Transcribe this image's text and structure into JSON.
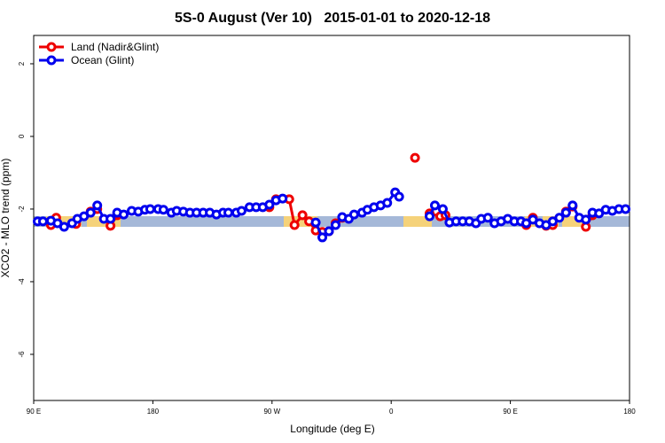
{
  "chart_data": {
    "type": "line",
    "title": "5S-0 August (Ver 10)   2015-01-01 to 2020-12-18",
    "x_label": "Longitude (deg E)",
    "y_label": "XCO2 - MLO trend (ppm)",
    "xlim": [
      90,
      540
    ],
    "xticks": [
      {
        "value": 90,
        "label": "90 E"
      },
      {
        "value": 180,
        "label": "180"
      },
      {
        "value": 270,
        "label": "90 W"
      },
      {
        "value": 360,
        "label": "0"
      },
      {
        "value": 450,
        "label": "90 E"
      },
      {
        "value": 540,
        "label": "180"
      }
    ],
    "ylim": [
      -7.27,
      2.78
    ],
    "yticks": [
      2,
      0,
      -2,
      -4,
      -6
    ],
    "legend": "top-left",
    "series": [
      {
        "name": "Land (Nadir&Glint)",
        "color": "#ee0000",
        "x": [
          103,
          107,
          null,
          122,
          null,
          133,
          138,
          null,
          148,
          153,
          null,
          268,
          273,
          283,
          287,
          293,
          298,
          303,
          308,
          313,
          318,
          323,
          null,
          378,
          null,
          389,
          397,
          401,
          null,
          462,
          467,
          null,
          477,
          482,
          null,
          492,
          497,
          null,
          507,
          512
        ],
        "values": [
          -2.44,
          -2.24,
          null,
          -2.41,
          null,
          -2.07,
          -2.0,
          null,
          -2.46,
          -2.17,
          null,
          -1.95,
          -1.73,
          -1.73,
          -2.44,
          -2.17,
          -2.34,
          -2.59,
          -2.63,
          -2.61,
          -2.39,
          -2.24,
          null,
          -0.59,
          null,
          -2.12,
          -2.2,
          -2.17,
          null,
          -2.44,
          -2.24,
          null,
          -2.46,
          -2.44,
          null,
          -2.07,
          -1.93,
          null,
          -2.49,
          -2.17
        ]
      },
      {
        "name": "Ocean (Glint)",
        "color": "#0000ee",
        "x": [
          93,
          97,
          103,
          108,
          113,
          119,
          123,
          128,
          133,
          138,
          143,
          148,
          153,
          158,
          164,
          169,
          174,
          178,
          184,
          188,
          194,
          198,
          203,
          208,
          213,
          218,
          223,
          228,
          233,
          237,
          243,
          247,
          253,
          258,
          263,
          268,
          273,
          278,
          null,
          303,
          308,
          313,
          318,
          323,
          328,
          332,
          338,
          342,
          347,
          352,
          357,
          363,
          366,
          null,
          389,
          393,
          399,
          404,
          409,
          414,
          419,
          424,
          428,
          433,
          438,
          443,
          448,
          453,
          458,
          462,
          467,
          472,
          477,
          482,
          487,
          492,
          497,
          502,
          507,
          512,
          517,
          522,
          527,
          532,
          537
        ],
        "values": [
          -2.34,
          -2.34,
          -2.32,
          -2.39,
          -2.49,
          -2.39,
          -2.27,
          -2.2,
          -2.1,
          -1.9,
          -2.27,
          -2.27,
          -2.1,
          -2.15,
          -2.05,
          -2.07,
          -2.02,
          -2.0,
          -2.0,
          -2.02,
          -2.1,
          -2.05,
          -2.07,
          -2.1,
          -2.1,
          -2.1,
          -2.1,
          -2.15,
          -2.1,
          -2.1,
          -2.1,
          -2.05,
          -1.95,
          -1.95,
          -1.95,
          -1.88,
          -1.76,
          -1.71,
          null,
          -2.37,
          -2.78,
          -2.61,
          -2.44,
          -2.22,
          -2.27,
          -2.15,
          -2.1,
          -2.02,
          -1.95,
          -1.9,
          -1.83,
          -1.54,
          -1.66,
          null,
          -2.2,
          -1.9,
          -2.0,
          -2.37,
          -2.34,
          -2.34,
          -2.34,
          -2.39,
          -2.27,
          -2.24,
          -2.39,
          -2.34,
          -2.27,
          -2.34,
          -2.34,
          -2.39,
          -2.29,
          -2.39,
          -2.44,
          -2.34,
          -2.24,
          -2.1,
          -1.9,
          -2.24,
          -2.29,
          -2.1,
          -2.12,
          -2.02,
          -2.05,
          -2.0,
          -2.0
        ]
      }
    ]
  }
}
